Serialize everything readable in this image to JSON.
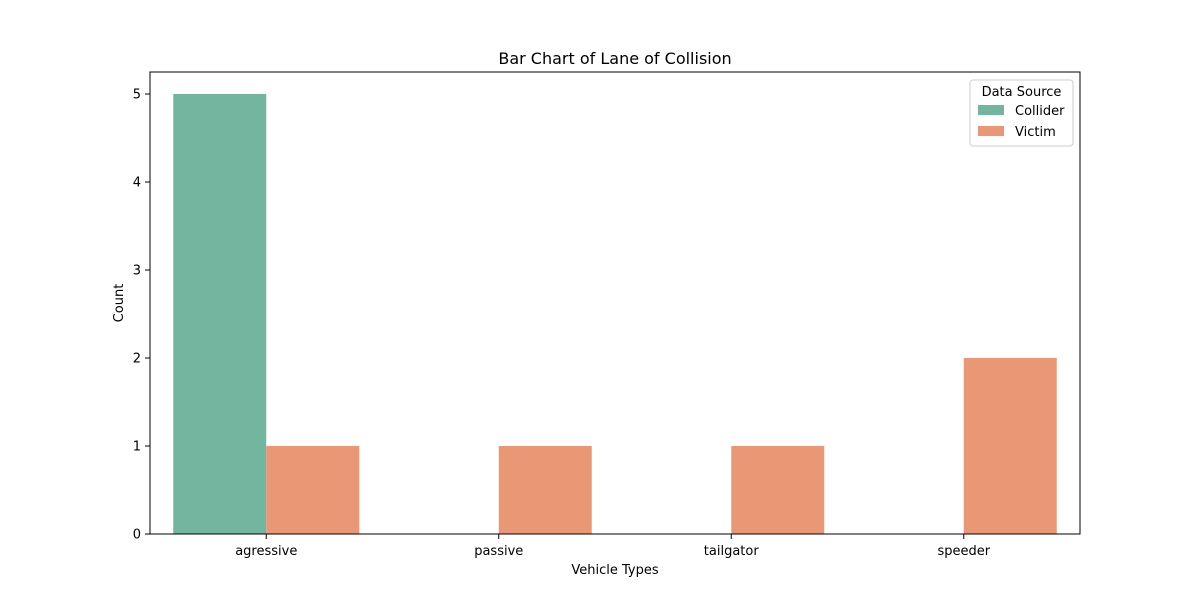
{
  "chart_data": {
    "type": "bar",
    "title": "Bar Chart of Lane of Collision",
    "xlabel": "Vehicle Types",
    "ylabel": "Count",
    "categories": [
      "agressive",
      "passive",
      "tailgator",
      "speeder"
    ],
    "series": [
      {
        "name": "Collider",
        "values": [
          5,
          0,
          0,
          0
        ],
        "color": "#73b6a0"
      },
      {
        "name": "Victim",
        "values": [
          1,
          1,
          1,
          2
        ],
        "color": "#e99775"
      }
    ],
    "ylim": [
      0,
      5.25
    ],
    "yticks": [
      0,
      1,
      2,
      3,
      4,
      5
    ],
    "grid": false,
    "legend": {
      "title": "Data Source",
      "placement": "top-right"
    }
  }
}
